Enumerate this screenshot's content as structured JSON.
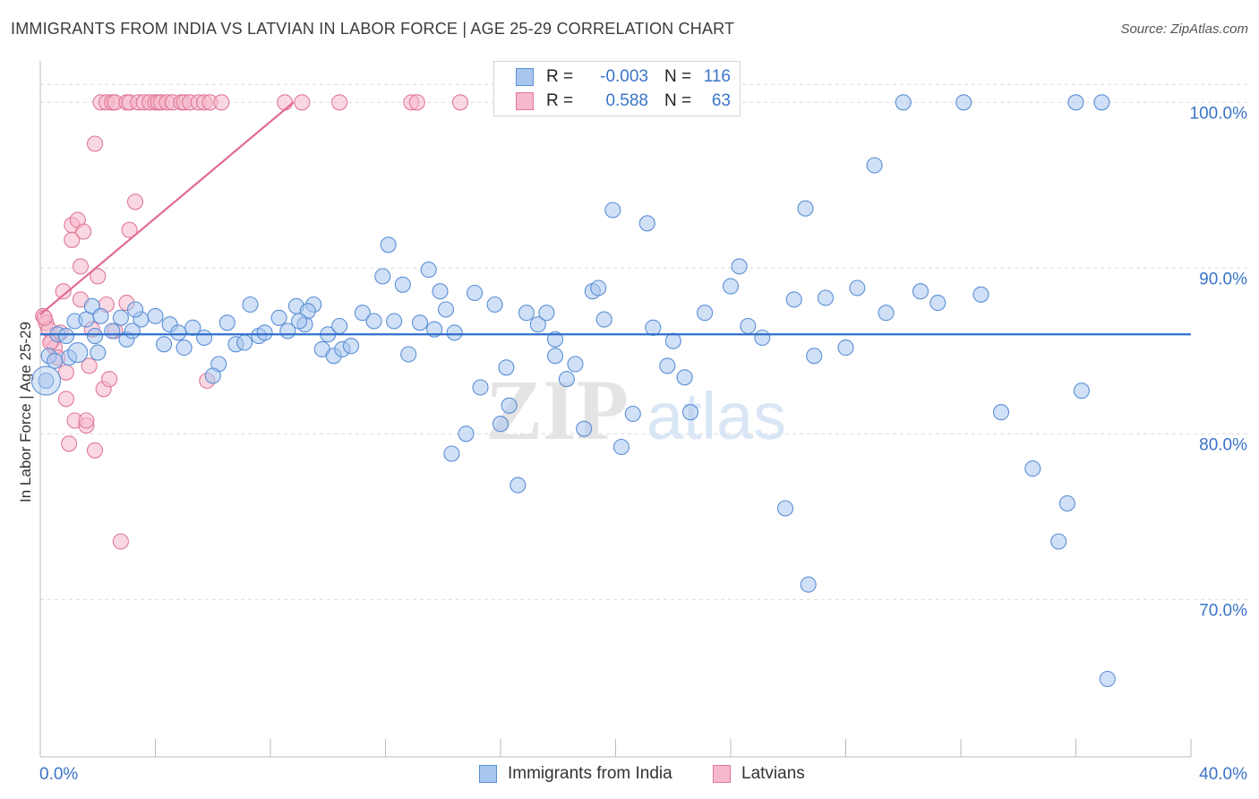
{
  "header": {
    "title": "IMMIGRANTS FROM INDIA VS LATVIAN IN LABOR FORCE | AGE 25-29 CORRELATION CHART",
    "source": "Source: ZipAtlas.com"
  },
  "watermark": {
    "zip": "ZIP",
    "atlas": "atlas"
  },
  "colors": {
    "blue_fill": "#a9c6ee",
    "blue_stroke": "#5b8fd6",
    "blue_line": "#2f6fcb",
    "pink_fill": "#f6b8cb",
    "pink_stroke": "#e07898",
    "pink_line": "#e26a92",
    "grid": "#d9d9d9",
    "tick_label": "#3a74c8"
  },
  "legend": {
    "rows": [
      {
        "r_label": "R =",
        "r_value": "-0.003",
        "n_label": "N =",
        "n_value": "116"
      },
      {
        "r_label": "R =",
        "r_value": "0.588",
        "n_label": "N =",
        "n_value": "63"
      }
    ]
  },
  "bottom_legend": {
    "series1": "Immigrants from India",
    "series2": "Latvians"
  },
  "chart_data": {
    "type": "scatter",
    "title": "IMMIGRANTS FROM INDIA VS LATVIAN IN LABOR FORCE | AGE 25-29 CORRELATION CHART",
    "xlabel": "",
    "ylabel": "In Labor Force | Age 25-29",
    "xlim": [
      0,
      40
    ],
    "ylim": [
      60.5,
      102.5
    ],
    "x_tick_labels": [
      "0.0%",
      "40.0%"
    ],
    "y_ticks": [
      70,
      80,
      90,
      100
    ],
    "y_tick_labels": [
      "70.0%",
      "80.0%",
      "90.0%",
      "100.0%"
    ],
    "grid": true,
    "series": [
      {
        "name": "Immigrants from India",
        "r": -0.003,
        "n": 116,
        "trend": {
          "x": [
            0,
            40
          ],
          "y": [
            86.0,
            86.0
          ]
        },
        "points": [
          [
            0.3,
            84.7
          ],
          [
            0.5,
            84.4
          ],
          [
            0.6,
            86.0
          ],
          [
            0.9,
            85.9
          ],
          [
            1.2,
            86.8
          ],
          [
            1.6,
            86.9
          ],
          [
            1.8,
            87.7
          ],
          [
            2.1,
            87.1
          ],
          [
            1.9,
            85.9
          ],
          [
            2.5,
            86.2
          ],
          [
            2.8,
            87.0
          ],
          [
            3.0,
            85.7
          ],
          [
            3.5,
            86.9
          ],
          [
            3.2,
            86.2
          ],
          [
            4.0,
            87.1
          ],
          [
            4.5,
            86.6
          ],
          [
            4.8,
            86.1
          ],
          [
            5.0,
            85.2
          ],
          [
            5.3,
            86.4
          ],
          [
            5.7,
            85.8
          ],
          [
            6.2,
            84.2
          ],
          [
            6.0,
            83.5
          ],
          [
            6.5,
            86.7
          ],
          [
            6.8,
            85.4
          ],
          [
            7.3,
            87.8
          ],
          [
            7.6,
            85.9
          ],
          [
            7.8,
            86.1
          ],
          [
            8.3,
            87.0
          ],
          [
            8.6,
            86.2
          ],
          [
            8.9,
            87.7
          ],
          [
            9.2,
            86.6
          ],
          [
            9.5,
            87.8
          ],
          [
            9.3,
            87.4
          ],
          [
            9.8,
            85.1
          ],
          [
            10.0,
            86.0
          ],
          [
            10.2,
            84.7
          ],
          [
            10.5,
            85.1
          ],
          [
            10.8,
            85.3
          ],
          [
            11.2,
            87.3
          ],
          [
            11.6,
            86.8
          ],
          [
            11.9,
            89.5
          ],
          [
            12.1,
            91.4
          ],
          [
            12.3,
            86.8
          ],
          [
            12.6,
            89.0
          ],
          [
            12.8,
            84.8
          ],
          [
            13.2,
            86.7
          ],
          [
            13.5,
            89.9
          ],
          [
            13.9,
            88.6
          ],
          [
            14.1,
            87.5
          ],
          [
            14.4,
            86.1
          ],
          [
            14.3,
            78.8
          ],
          [
            14.8,
            80.0
          ],
          [
            15.1,
            88.5
          ],
          [
            15.3,
            82.8
          ],
          [
            15.8,
            87.8
          ],
          [
            16.0,
            80.6
          ],
          [
            16.3,
            81.7
          ],
          [
            16.6,
            76.9
          ],
          [
            16.9,
            87.3
          ],
          [
            17.3,
            86.6
          ],
          [
            17.6,
            87.3
          ],
          [
            17.9,
            85.7
          ],
          [
            17.9,
            84.7
          ],
          [
            18.3,
            83.3
          ],
          [
            18.6,
            84.2
          ],
          [
            18.9,
            80.3
          ],
          [
            19.2,
            88.6
          ],
          [
            19.4,
            88.8
          ],
          [
            19.6,
            86.9
          ],
          [
            19.9,
            93.5
          ],
          [
            21.1,
            92.7
          ],
          [
            20.2,
            79.2
          ],
          [
            20.6,
            81.2
          ],
          [
            21.3,
            86.4
          ],
          [
            21.8,
            84.1
          ],
          [
            22.4,
            83.4
          ],
          [
            22.6,
            81.3
          ],
          [
            23.1,
            87.3
          ],
          [
            24.0,
            88.9
          ],
          [
            24.3,
            90.1
          ],
          [
            24.6,
            86.5
          ],
          [
            25.1,
            85.8
          ],
          [
            25.9,
            75.5
          ],
          [
            26.2,
            88.1
          ],
          [
            26.6,
            93.6
          ],
          [
            26.9,
            84.7
          ],
          [
            26.7,
            70.9
          ],
          [
            27.3,
            88.2
          ],
          [
            28.4,
            88.8
          ],
          [
            29.0,
            96.2
          ],
          [
            29.4,
            87.3
          ],
          [
            30.0,
            100.0
          ],
          [
            30.6,
            88.6
          ],
          [
            31.2,
            87.9
          ],
          [
            32.1,
            100.0
          ],
          [
            32.7,
            88.4
          ],
          [
            33.4,
            81.3
          ],
          [
            34.5,
            77.9
          ],
          [
            35.4,
            73.5
          ],
          [
            35.7,
            75.8
          ],
          [
            36.0,
            100.0
          ],
          [
            36.2,
            82.6
          ],
          [
            36.9,
            100.0
          ],
          [
            37.1,
            65.2
          ],
          [
            7.1,
            85.5
          ],
          [
            3.3,
            87.5
          ],
          [
            2.0,
            84.9
          ],
          [
            0.2,
            83.2
          ],
          [
            1.0,
            84.6
          ],
          [
            10.4,
            86.5
          ],
          [
            13.7,
            86.3
          ],
          [
            16.2,
            84.0
          ],
          [
            22.0,
            85.6
          ],
          [
            28.0,
            85.2
          ],
          [
            4.3,
            85.4
          ],
          [
            9.0,
            86.8
          ]
        ]
      },
      {
        "name": "Latvians",
        "r": 0.588,
        "n": 63,
        "trend": {
          "x": [
            0,
            8.8
          ],
          "y": [
            87.2,
            100.0
          ]
        },
        "points": [
          [
            0.1,
            87.1
          ],
          [
            0.2,
            86.7
          ],
          [
            0.3,
            86.3
          ],
          [
            0.4,
            85.6
          ],
          [
            0.5,
            85.2
          ],
          [
            0.6,
            84.6
          ],
          [
            0.8,
            88.6
          ],
          [
            0.9,
            83.7
          ],
          [
            0.9,
            82.1
          ],
          [
            1.0,
            79.4
          ],
          [
            1.1,
            91.7
          ],
          [
            1.1,
            92.6
          ],
          [
            1.2,
            80.8
          ],
          [
            1.3,
            92.9
          ],
          [
            1.4,
            88.1
          ],
          [
            1.4,
            90.1
          ],
          [
            1.5,
            92.2
          ],
          [
            1.6,
            80.5
          ],
          [
            1.6,
            80.8
          ],
          [
            1.7,
            84.1
          ],
          [
            1.8,
            86.3
          ],
          [
            1.9,
            79.0
          ],
          [
            1.9,
            97.5
          ],
          [
            2.0,
            89.5
          ],
          [
            2.2,
            82.7
          ],
          [
            2.3,
            87.8
          ],
          [
            2.4,
            83.3
          ],
          [
            2.6,
            86.2
          ],
          [
            2.8,
            73.5
          ],
          [
            3.0,
            87.9
          ],
          [
            3.1,
            92.3
          ],
          [
            3.3,
            94.0
          ],
          [
            2.1,
            100.0
          ],
          [
            2.3,
            100.0
          ],
          [
            2.5,
            100.0
          ],
          [
            2.6,
            100.0
          ],
          [
            3.0,
            100.0
          ],
          [
            3.1,
            100.0
          ],
          [
            3.4,
            100.0
          ],
          [
            3.6,
            100.0
          ],
          [
            3.8,
            100.0
          ],
          [
            4.0,
            100.0
          ],
          [
            4.1,
            100.0
          ],
          [
            4.2,
            100.0
          ],
          [
            4.4,
            100.0
          ],
          [
            4.6,
            100.0
          ],
          [
            4.9,
            100.0
          ],
          [
            5.0,
            100.0
          ],
          [
            5.2,
            100.0
          ],
          [
            5.5,
            100.0
          ],
          [
            5.7,
            100.0
          ],
          [
            5.9,
            100.0
          ],
          [
            6.3,
            100.0
          ],
          [
            8.5,
            100.0
          ],
          [
            9.1,
            100.0
          ],
          [
            10.4,
            100.0
          ],
          [
            12.9,
            100.0
          ],
          [
            13.1,
            100.0
          ],
          [
            14.6,
            100.0
          ],
          [
            5.8,
            83.2
          ],
          [
            0.15,
            87.0
          ],
          [
            0.35,
            85.5
          ],
          [
            0.7,
            86.1
          ]
        ]
      }
    ]
  }
}
